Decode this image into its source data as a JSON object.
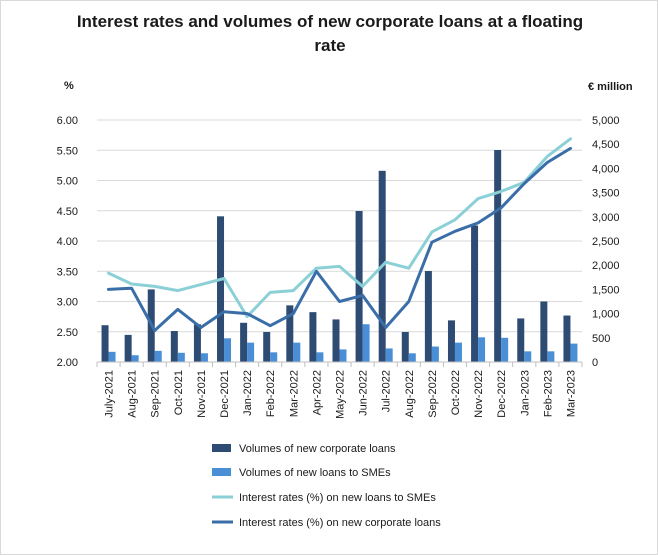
{
  "chart_data": {
    "type": "bar+line",
    "title": "Interest rates and volumes of new corporate loans at a floating rate",
    "left_axis_label": "%",
    "right_axis_label": "€ million",
    "categories": [
      "July-2021",
      "Aug-2021",
      "Sep-2021",
      "Oct-2021",
      "Nov-2021",
      "Dec-2021",
      "Jan-2022",
      "Feb-2022",
      "Mar-2022",
      "Apr-2022",
      "May-2022",
      "Jun-2022",
      "Jul-2022",
      "Aug-2022",
      "Sep-2022",
      "Oct-2022",
      "Nov-2022",
      "Dec-2022",
      "Jan-2023",
      "Feb-2023",
      "Mar-2023"
    ],
    "left_axis": {
      "min": 2.0,
      "max": 6.0,
      "step": 0.5,
      "ticks": [
        "2.00",
        "2.50",
        "3.00",
        "3.50",
        "4.00",
        "4.50",
        "5.00",
        "5.50",
        "6.00"
      ]
    },
    "right_axis": {
      "min": 0,
      "max": 5000,
      "step": 500,
      "ticks": [
        "0",
        "500",
        "1,000",
        "1,500",
        "2,000",
        "2,500",
        "3,000",
        "3,500",
        "4,000",
        "4,500",
        "5,000"
      ]
    },
    "series": [
      {
        "name": "Volumes of new corporate loans",
        "type": "bar",
        "axis": "right",
        "color": "#2e4b73",
        "values": [
          760,
          560,
          1500,
          640,
          780,
          3010,
          810,
          620,
          1170,
          1030,
          880,
          3120,
          3950,
          620,
          1880,
          860,
          2820,
          4380,
          900,
          1250,
          960
        ]
      },
      {
        "name": "Volumes of new loans to SMEs",
        "type": "bar",
        "axis": "right",
        "color": "#4a8fd6",
        "values": [
          210,
          140,
          230,
          190,
          180,
          490,
          400,
          200,
          400,
          200,
          260,
          780,
          280,
          180,
          320,
          400,
          510,
          500,
          220,
          220,
          380
        ]
      },
      {
        "name": "Interest rates (%) on new loans to SMEs",
        "type": "line",
        "axis": "left",
        "color": "#8ad0d6",
        "values": [
          3.47,
          3.29,
          3.25,
          3.18,
          3.28,
          3.38,
          2.75,
          3.15,
          3.18,
          3.55,
          3.58,
          3.25,
          3.65,
          3.55,
          4.15,
          4.35,
          4.7,
          4.82,
          4.97,
          5.4,
          5.69
        ]
      },
      {
        "name": "Interest rates (%) on new corporate loans",
        "type": "line",
        "axis": "left",
        "color": "#3a6ea8",
        "values": [
          3.2,
          3.22,
          2.52,
          2.87,
          2.57,
          2.83,
          2.8,
          2.6,
          2.8,
          3.5,
          3.0,
          3.1,
          2.57,
          3.0,
          3.98,
          4.16,
          4.3,
          4.55,
          4.95,
          5.3,
          5.53
        ]
      }
    ]
  }
}
